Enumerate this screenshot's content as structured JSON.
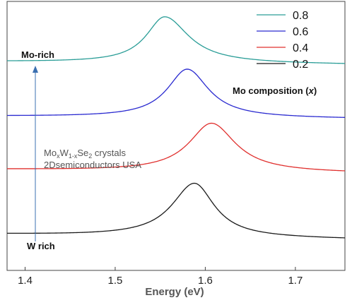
{
  "chart_data": {
    "type": "line",
    "title": "",
    "xlabel": "Energy (eV)",
    "ylabel": "",
    "xlim": [
      1.38,
      1.755
    ],
    "ylim": [
      0,
      1
    ],
    "xticks": [
      1.4,
      1.5,
      1.6,
      1.7
    ],
    "xtick_labels": [
      "1.4",
      "1.5",
      "1.6",
      "1.7"
    ],
    "grid": false,
    "legend_position": "top-right",
    "legend_title": "Mo composition (x)",
    "legend_title_main": "Mo composition (",
    "legend_title_var": "x",
    "legend_title_end": ")",
    "series": [
      {
        "name": "0.8",
        "color": "#2a9d97",
        "peak": 1.555,
        "width_left": 0.028,
        "width_right": 0.036,
        "amplitude": 0.172,
        "baseline_left": 0.224,
        "baseline_right": 0.235
      },
      {
        "name": "0.6",
        "color": "#2a2ad0",
        "peak": 1.58,
        "width_left": 0.03,
        "width_right": 0.032,
        "amplitude": 0.18,
        "baseline_left": 0.427,
        "baseline_right": 0.436
      },
      {
        "name": "0.4",
        "color": "#e0302e",
        "peak": 1.607,
        "width_left": 0.034,
        "width_right": 0.036,
        "amplitude": 0.18,
        "baseline_left": 0.625,
        "baseline_right": 0.638
      },
      {
        "name": "0.2",
        "color": "#1a1a1a",
        "peak": 1.588,
        "width_left": 0.034,
        "width_right": 0.03,
        "amplitude": 0.2,
        "baseline_left": 0.866,
        "baseline_right": 0.884
      }
    ],
    "annotations": {
      "top_label": "Mo-rich",
      "bottom_label": "W rich",
      "material_base1": "Mo",
      "material_sub1": "x",
      "material_base2": "W",
      "material_sub2": "1-x",
      "material_base3": "Se",
      "material_sub3": "2",
      "material_rest": " crystals",
      "vendor": "2Dsemiconductors USA"
    }
  }
}
